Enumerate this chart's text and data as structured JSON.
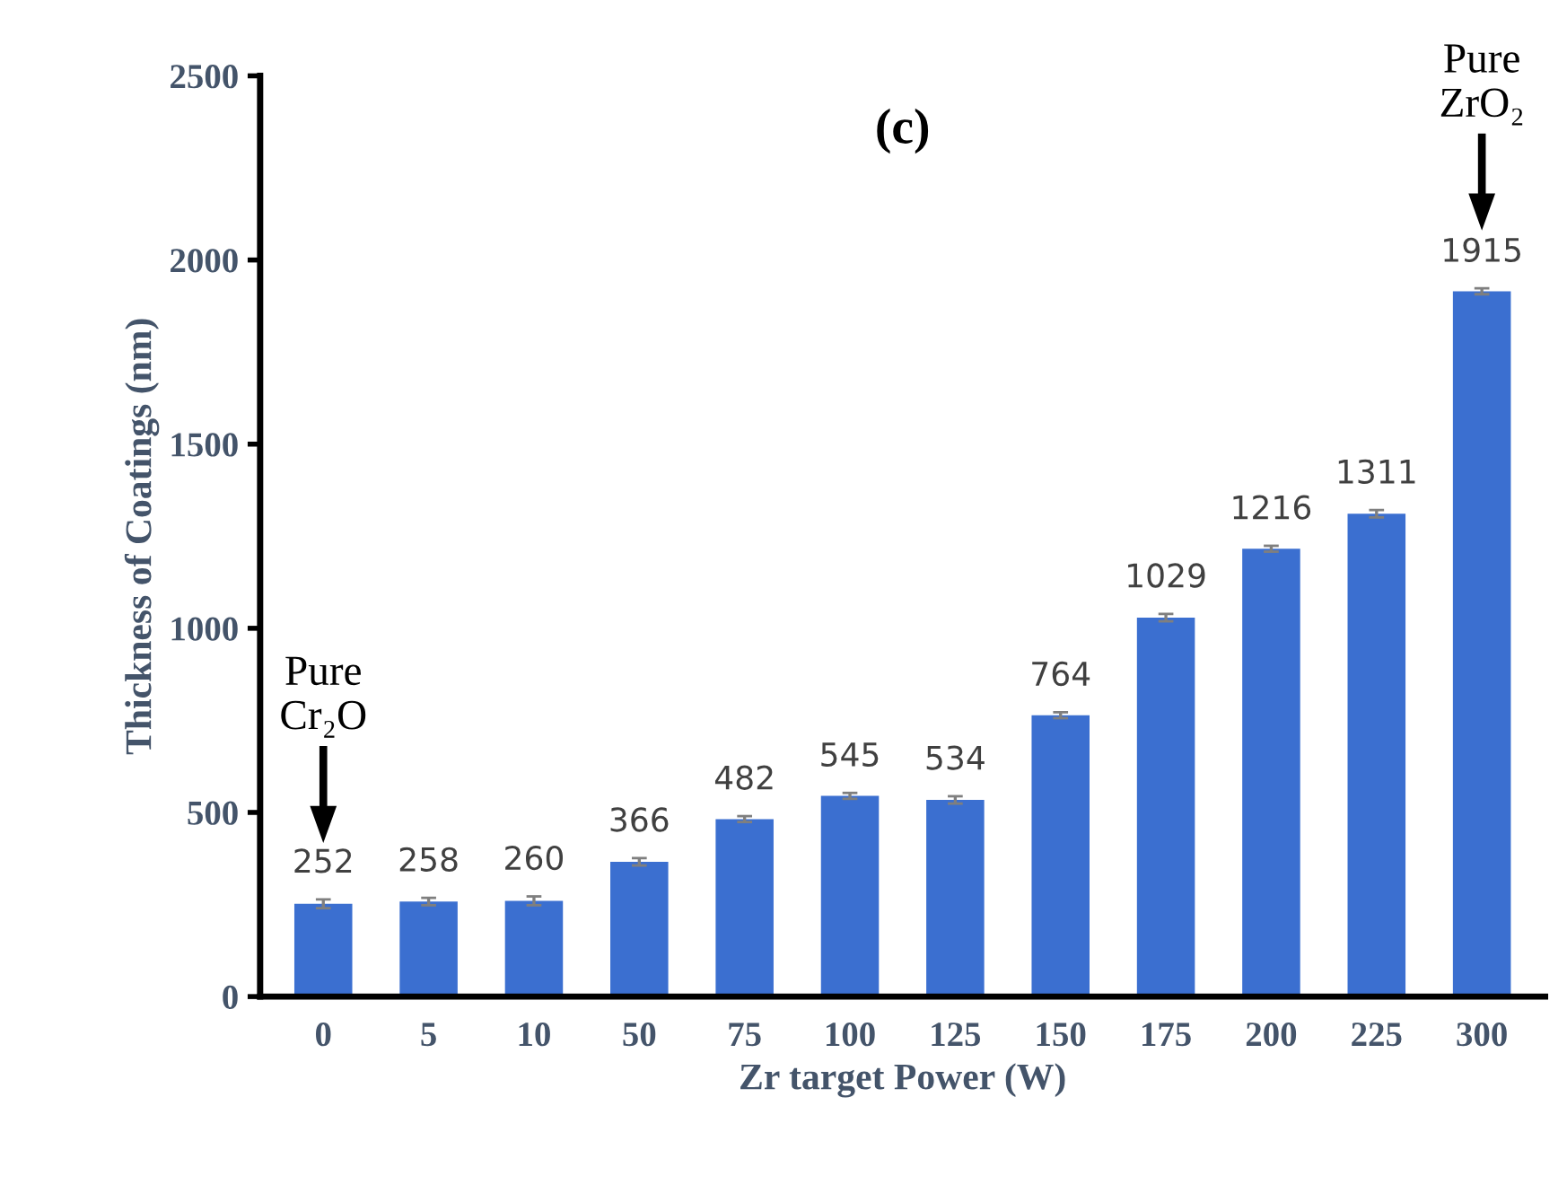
{
  "chart_data": {
    "type": "bar",
    "title": "(c)",
    "xlabel": "Zr target Power (W)",
    "ylabel": "Thickness of Coatings (nm)",
    "categories": [
      "0",
      "5",
      "10",
      "50",
      "75",
      "100",
      "125",
      "150",
      "175",
      "200",
      "225",
      "300"
    ],
    "values": [
      252,
      258,
      260,
      366,
      482,
      545,
      534,
      764,
      1029,
      1216,
      1311,
      1915
    ],
    "errors": [
      12,
      10,
      12,
      10,
      8,
      8,
      10,
      8,
      10,
      8,
      10,
      8
    ],
    "color": "#3b6fd0",
    "ylim": [
      0,
      2500
    ],
    "yticks": [
      0,
      500,
      1000,
      1500,
      2000,
      2500
    ],
    "grid": false,
    "data_labels": true,
    "annotations": [
      "Pure\nCr₂O",
      "Pure\nZrO₂"
    ]
  }
}
